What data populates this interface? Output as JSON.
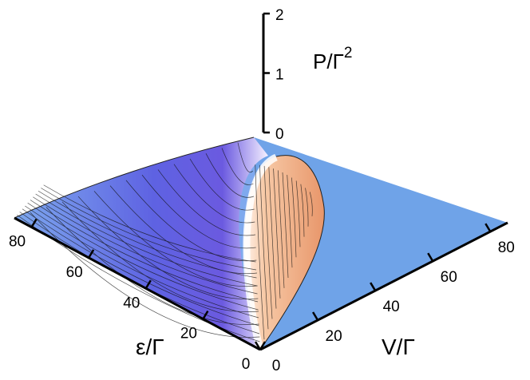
{
  "chart_data": {
    "type": "surface3d",
    "title": "",
    "zlabel": "P/Γ",
    "zlabel_exponent": "2",
    "xlabel": "V/Γ",
    "ylabel": "ε/Γ",
    "x_ticks": [
      "0",
      "20",
      "40",
      "60",
      "80"
    ],
    "y_ticks": [
      "0",
      "20",
      "40",
      "60",
      "80"
    ],
    "z_ticks": [
      "0",
      "1",
      "2"
    ],
    "xlim": [
      0,
      80
    ],
    "ylim": [
      0,
      80
    ],
    "zlim": [
      0,
      2
    ],
    "surface_description_samples": [
      {
        "V": 0,
        "eps": 80,
        "P": 0.0
      },
      {
        "V": 20,
        "eps": 20,
        "P": 2.0
      },
      {
        "V": 10,
        "eps": 40,
        "P": 1.2
      },
      {
        "V": 40,
        "eps": 40,
        "P": 0.6
      },
      {
        "V": 60,
        "eps": 20,
        "P": 0.0
      }
    ],
    "colors": {
      "floor": "#6fa3e8",
      "surface_cool": "#5a5de0",
      "surface_warm": "#f2a070",
      "ridge": "#ffffff"
    }
  }
}
